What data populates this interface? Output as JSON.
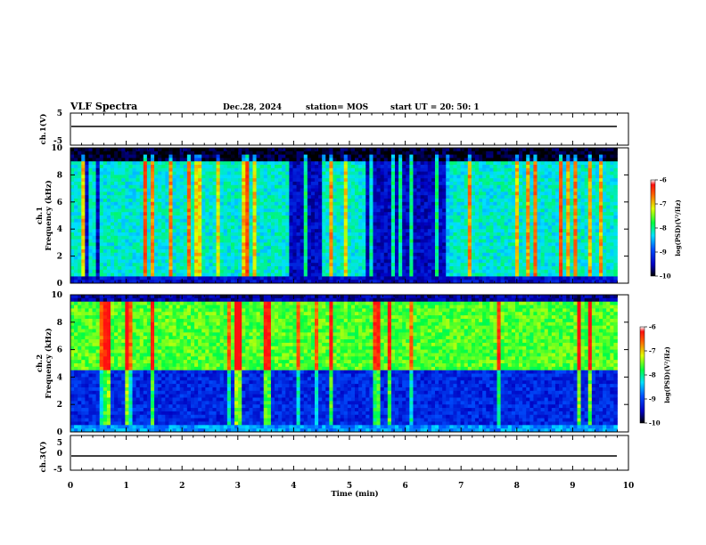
{
  "header": {
    "title": "VLF Spectra",
    "date": "Dec.28, 2024",
    "station": "station= MOS",
    "start": "start  UT  =   20: 50: 1"
  },
  "chart_data": [
    {
      "type": "line",
      "name": "ch1-waveform",
      "ylabel": "ch.1(V)",
      "ylim": [
        -5,
        5
      ],
      "y_ticks": [
        "5",
        "-5"
      ],
      "xlim": [
        0,
        10
      ],
      "level": 0
    },
    {
      "type": "heatmap",
      "name": "ch1-spectrogram",
      "ylabel_line1": "ch.1",
      "ylabel_line2": "Frequency (kHz)",
      "ylim": [
        0,
        10
      ],
      "y_ticks": [
        "0",
        "2",
        "4",
        "6",
        "8",
        "10"
      ],
      "xlim": [
        0,
        10
      ],
      "data_end_min": 9.8,
      "colorbar": {
        "label": "log(PSD)(V²/Hz)",
        "range": [
          -10,
          -6
        ],
        "ticks": [
          "-6",
          "-7",
          "-8",
          "-9",
          "-10"
        ]
      },
      "bands": [
        {
          "from_khz": 0.0,
          "to_khz": 0.6,
          "level": 0.15
        },
        {
          "from_khz": 0.6,
          "to_khz": 9.0,
          "level": 0.45
        },
        {
          "from_khz": 9.0,
          "to_khz": 10.0,
          "level": 0.02
        }
      ],
      "quiet_segments_min": [
        [
          0.25,
          0.35
        ],
        [
          0.45,
          0.55
        ],
        [
          3.9,
          4.6
        ],
        [
          5.3,
          6.8
        ]
      ]
    },
    {
      "type": "heatmap",
      "name": "ch2-spectrogram",
      "ylabel_line1": "ch.2",
      "ylabel_line2": "Frequency (kHz)",
      "ylim": [
        0,
        10
      ],
      "y_ticks": [
        "0",
        "2",
        "4",
        "6",
        "8",
        "10"
      ],
      "xlim": [
        0,
        10
      ],
      "data_end_min": 9.8,
      "colorbar": {
        "label": "log(PSD)(V²/Hz)",
        "range": [
          -10,
          -6
        ],
        "ticks": [
          "-6",
          "-7",
          "-8",
          "-9",
          "-10"
        ]
      },
      "bands": [
        {
          "from_khz": 0.0,
          "to_khz": 0.5,
          "level": 0.35
        },
        {
          "from_khz": 0.5,
          "to_khz": 4.5,
          "level": 0.2
        },
        {
          "from_khz": 4.5,
          "to_khz": 9.5,
          "level": 0.6
        },
        {
          "from_khz": 9.5,
          "to_khz": 10.0,
          "level": 0.1
        }
      ],
      "quiet_segments_min": []
    },
    {
      "type": "line",
      "name": "ch3-waveform",
      "ylabel": "ch.3(V)",
      "ylim": [
        -5,
        5
      ],
      "y_ticks": [
        "5",
        "0",
        "-5"
      ],
      "xlim": [
        0,
        10
      ],
      "level": 0
    }
  ],
  "x_axis": {
    "label": "Time  (min)",
    "ticks": [
      "0",
      "1",
      "2",
      "3",
      "4",
      "5",
      "6",
      "7",
      "8",
      "9",
      "10"
    ]
  }
}
